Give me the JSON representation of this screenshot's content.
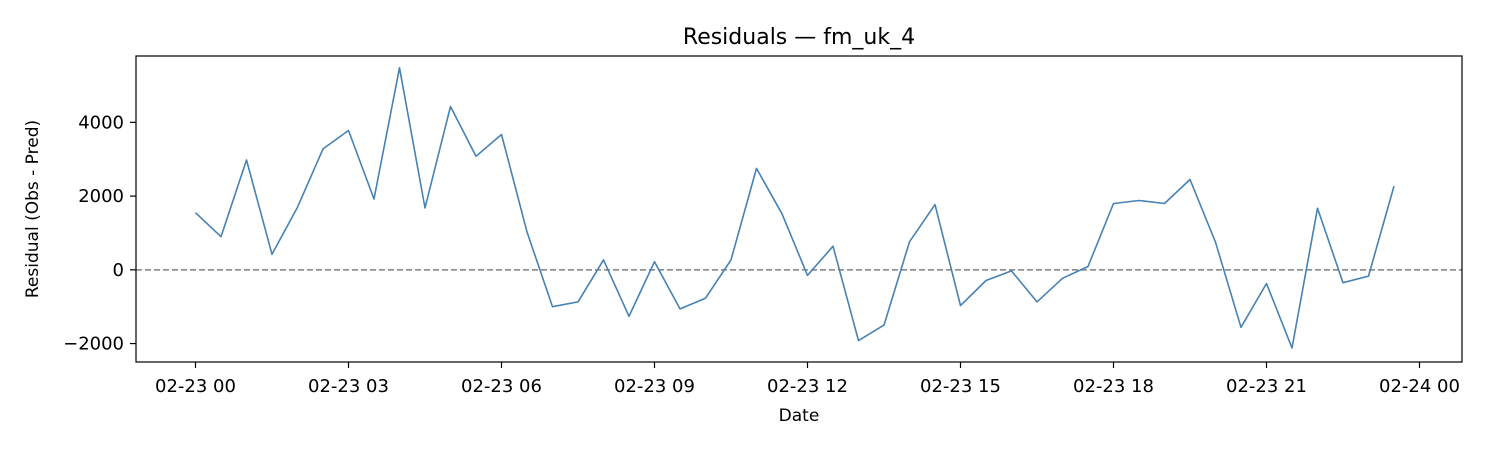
{
  "chart_data": {
    "type": "line",
    "title": "Residuals — fm_uk_4",
    "xlabel": "Date",
    "ylabel": "Residual (Obs - Pred)",
    "x_tick_labels": [
      "02-23 00",
      "02-23 03",
      "02-23 06",
      "02-23 09",
      "02-23 12",
      "02-23 15",
      "02-23 18",
      "02-23 21",
      "02-24 00"
    ],
    "y_ticks": [
      -2000,
      0,
      2000,
      4000
    ],
    "ylim": [
      -2500,
      5800
    ],
    "xlim": [
      "02-22 22:50",
      "02-24 00:50"
    ],
    "reference_line": {
      "y": 0,
      "style": "dashed",
      "color": "#808080"
    },
    "grid": false,
    "line_color": "#4682b4",
    "series": [
      {
        "x": [
          "02-23 00:00",
          "02-23 00:30",
          "02-23 01:00",
          "02-23 01:30",
          "02-23 02:00",
          "02-23 02:30",
          "02-23 03:00",
          "02-23 03:30",
          "02-23 04:00",
          "02-23 04:30",
          "02-23 05:00",
          "02-23 05:30",
          "02-23 06:00",
          "02-23 06:30",
          "02-23 07:00",
          "02-23 07:30",
          "02-23 08:00",
          "02-23 08:30",
          "02-23 09:00",
          "02-23 09:30",
          "02-23 10:00",
          "02-23 10:30",
          "02-23 11:00",
          "02-23 11:30",
          "02-23 12:00",
          "02-23 12:30",
          "02-23 13:00",
          "02-23 13:30",
          "02-23 14:00",
          "02-23 14:30",
          "02-23 15:00",
          "02-23 15:30",
          "02-23 16:00",
          "02-23 16:30",
          "02-23 17:00",
          "02-23 17:30",
          "02-23 18:00",
          "02-23 18:30",
          "02-23 19:00",
          "02-23 19:30",
          "02-23 20:00",
          "02-23 20:30",
          "02-23 21:00",
          "02-23 21:30",
          "02-23 22:00",
          "02-23 22:30",
          "02-23 23:00",
          "02-23 23:30"
        ],
        "values": [
          1550,
          900,
          2980,
          420,
          1700,
          3280,
          3780,
          1920,
          5480,
          1680,
          4430,
          3080,
          3670,
          1030,
          -1000,
          -870,
          270,
          -1260,
          220,
          -1060,
          -770,
          270,
          2750,
          1520,
          -150,
          640,
          -1920,
          -1500,
          760,
          1770,
          -970,
          -290,
          -30,
          -870,
          -230,
          90,
          1800,
          1880,
          1800,
          2450,
          750,
          -1560,
          -370,
          -2120,
          1670,
          -350,
          -170,
          2270
        ]
      }
    ]
  }
}
